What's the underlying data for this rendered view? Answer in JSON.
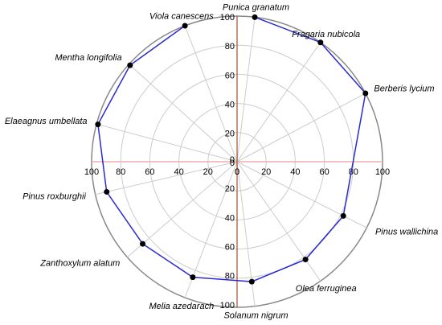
{
  "chart_data": {
    "type": "polar-line",
    "categories": [
      "Punica granatum",
      "Fragaria nubicola",
      "Berberis lycium",
      "Pinus wallichina",
      "Olea ferruginea",
      "Solanum nigrum",
      "Melia azedarach",
      "Zanthoxylum alatum",
      "Pinus roxburghii",
      "Elaeagnus umbellata",
      "Mentha  longifolia",
      "Viola canescens"
    ],
    "theta": [
      7,
      35,
      62,
      117,
      145,
      173,
      201,
      229,
      257,
      285,
      312,
      339
    ],
    "values": [
      100,
      100,
      100,
      82,
      82,
      83,
      85,
      86,
      92,
      99,
      99,
      100
    ],
    "color": "#2a2ad0",
    "rlim": [
      0,
      100
    ],
    "rticks": [
      0,
      20,
      40,
      60,
      80,
      100
    ],
    "grid": true
  }
}
